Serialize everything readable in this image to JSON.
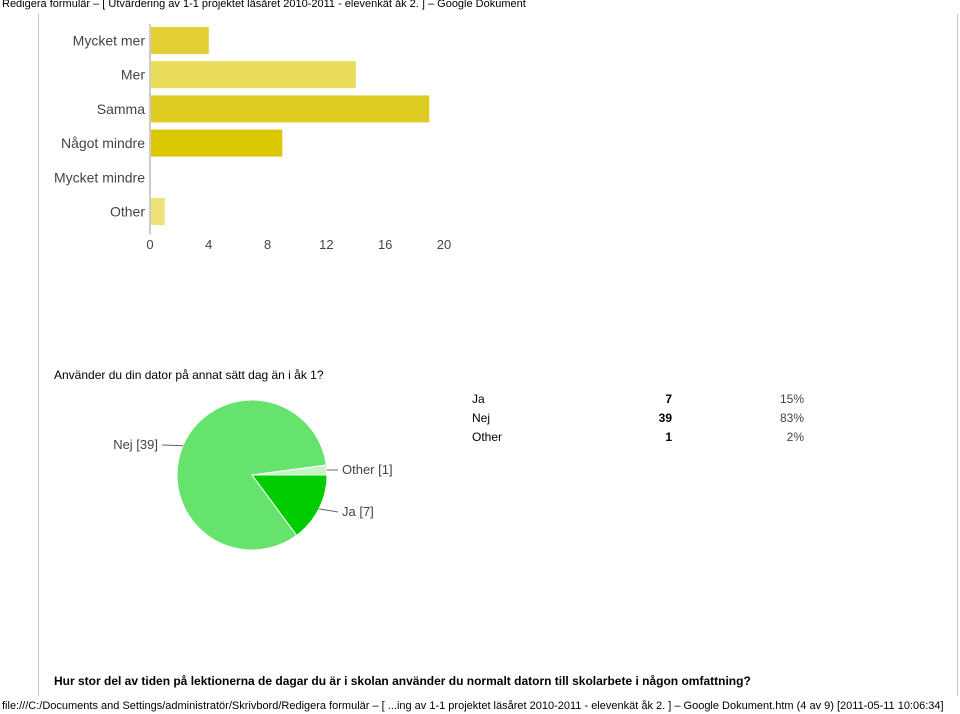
{
  "header": {
    "title": "Redigera formulär – [ Utvärdering av 1-1 projektet läsåret 2010-2011 - elevenkät åk 2. ] – Google Dokument"
  },
  "footer": {
    "text": "file:///C:/Documents and Settings/administratör/Skrivbord/Redigera formulär – [ ...ing av 1-1 projektet läsåret 2010-2011 - elevenkät åk 2. ] – Google Dokument.htm (4 av 9) [2011-05-11 10:06:34]"
  },
  "questions": {
    "q1": "Använder du din dator på annat sätt dag än i åk 1?",
    "q2": "Hur stor del av tiden på lektionerna de dagar du är i skolan använder du normalt datorn till skolarbete i någon omfattning?"
  },
  "chart_data": [
    {
      "type": "bar",
      "orientation": "horizontal",
      "categories": [
        "Mycket mer",
        "Mer",
        "Samma",
        "Något mindre",
        "Mycket mindre",
        "Other"
      ],
      "values": [
        4,
        14,
        19,
        9,
        0,
        1
      ],
      "xlim": [
        0,
        20
      ],
      "xticks": [
        0,
        4,
        8,
        12,
        16,
        20
      ],
      "bar_colors": [
        "#e3cf33",
        "#e8dc5a",
        "#dfcc22",
        "#dcc800",
        "#e6d84a",
        "#ede27a"
      ],
      "grid": false,
      "legend": "none"
    },
    {
      "type": "pie",
      "labels": [
        "Ja",
        "Nej",
        "Other"
      ],
      "values": [
        7,
        39,
        1
      ],
      "callouts": [
        "Ja [7]",
        "Nej [39]",
        "Other [1]"
      ],
      "colors": [
        "#00cc00",
        "#66e36c",
        "#c8f5c4"
      ]
    }
  ],
  "summary": {
    "rows": [
      {
        "label": "Ja",
        "count": "7",
        "percent": "15%"
      },
      {
        "label": "Nej",
        "count": "39",
        "percent": "83%"
      },
      {
        "label": "Other",
        "count": "1",
        "percent": "2%"
      }
    ]
  }
}
